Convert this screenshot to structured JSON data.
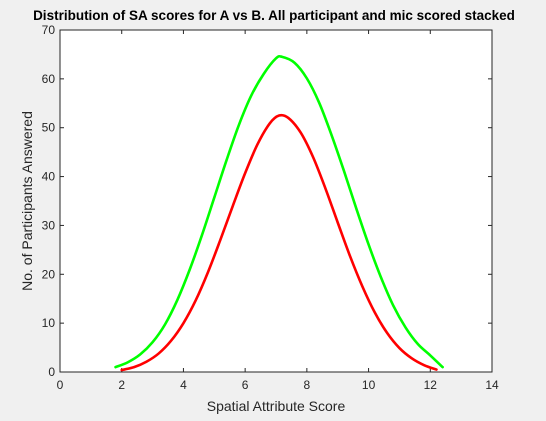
{
  "chart_data": {
    "type": "line",
    "title": "Distribution of SA scores for A vs B. All participant and mic scored stacked",
    "xlabel": "Spatial Attribute Score",
    "ylabel": "No. of Participants Answered",
    "xlim": [
      0,
      14
    ],
    "ylim": [
      0,
      70
    ],
    "xticks": [
      "0",
      "2",
      "4",
      "6",
      "8",
      "10",
      "12",
      "14"
    ],
    "yticks": [
      "0",
      "10",
      "20",
      "30",
      "40",
      "50",
      "60",
      "70"
    ],
    "grid": false,
    "legend": "none",
    "series": [
      {
        "color": "#00ff00",
        "x": [
          1.8,
          2.2,
          2.6,
          3.0,
          3.4,
          3.8,
          4.2,
          4.6,
          5.0,
          5.4,
          5.8,
          6.2,
          6.6,
          7.0,
          7.2,
          7.6,
          8.0,
          8.4,
          8.8,
          9.2,
          9.6,
          10.0,
          10.4,
          10.8,
          11.2,
          11.6,
          12.0,
          12.4
        ],
        "y": [
          1.0,
          2.0,
          3.6,
          6.1,
          9.7,
          14.7,
          20.9,
          28.0,
          35.7,
          43.4,
          50.6,
          56.6,
          61.0,
          64.2,
          64.5,
          63.3,
          60.1,
          55.1,
          48.5,
          41.2,
          33.5,
          26.1,
          19.4,
          13.6,
          9.1,
          5.7,
          3.4,
          1.0
        ]
      },
      {
        "color": "#ff0000",
        "x": [
          2.0,
          2.4,
          2.8,
          3.2,
          3.6,
          4.0,
          4.4,
          4.8,
          5.2,
          5.6,
          6.0,
          6.4,
          6.8,
          7.1,
          7.4,
          7.8,
          8.2,
          8.6,
          9.0,
          9.4,
          9.8,
          10.2,
          10.6,
          11.0,
          11.4,
          11.8,
          12.2
        ],
        "y": [
          0.4,
          1.0,
          2.1,
          3.8,
          6.4,
          10.0,
          14.7,
          20.5,
          27.1,
          34.0,
          40.7,
          46.6,
          50.9,
          52.5,
          52.0,
          49.0,
          44.0,
          37.6,
          30.6,
          23.7,
          17.5,
          12.2,
          8.0,
          4.9,
          2.8,
          1.4,
          0.5
        ]
      }
    ]
  }
}
